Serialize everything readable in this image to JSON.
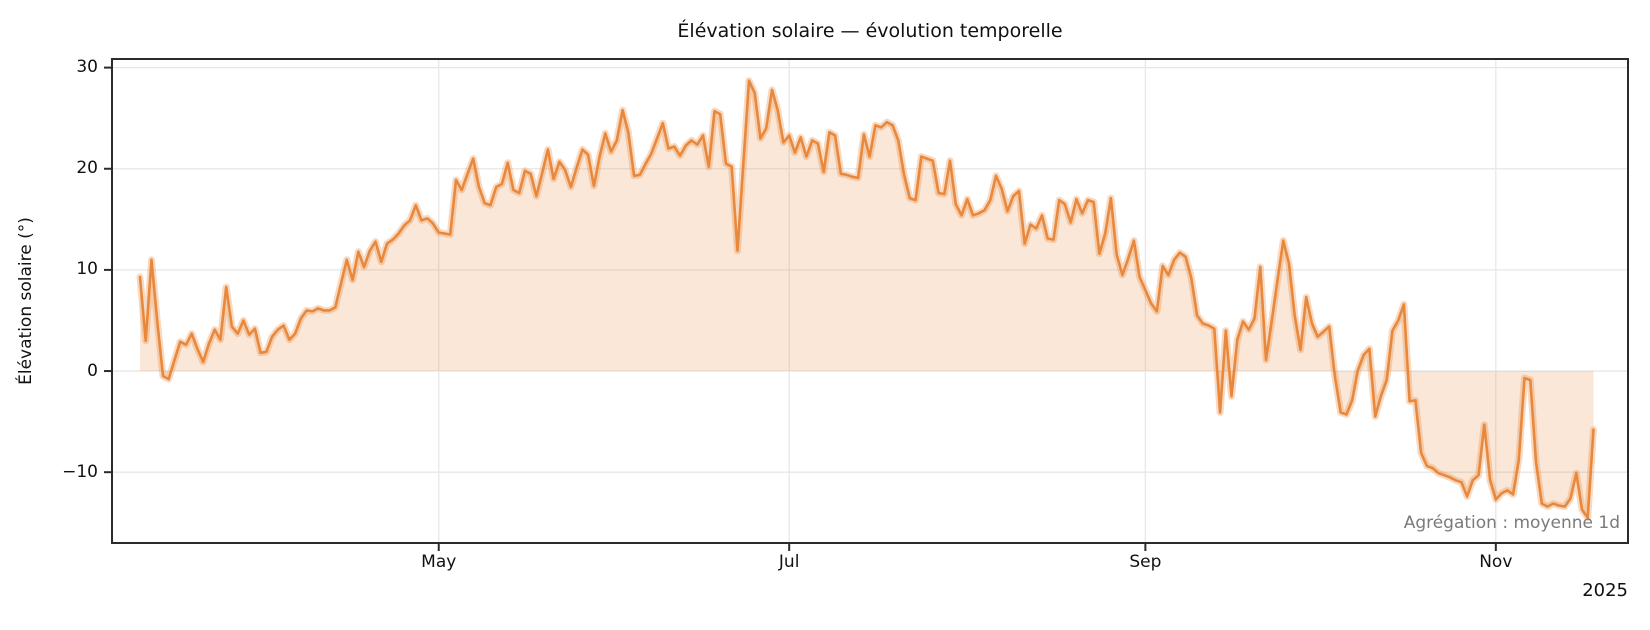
{
  "title": "Élévation solaire — évolution temporelle",
  "y_axis": {
    "label": "Élévation solaire (°)",
    "ticks": [
      30,
      20,
      10,
      0,
      -10
    ]
  },
  "x_axis": {
    "ticks": [
      {
        "label": "May",
        "day": 52
      },
      {
        "label": "Jul",
        "day": 113
      },
      {
        "label": "Sep",
        "day": 175
      },
      {
        "label": "Nov",
        "day": 236
      }
    ],
    "year_label": "2025"
  },
  "annotation": "Agrégation : moyenne 1d",
  "colors": {
    "line": "#e8883d",
    "halo": "rgba(232,136,61,0.32)",
    "fill": "rgba(232,136,61,0.20)",
    "grid": "#e7e7e7",
    "spine": "#2b2b2b",
    "text": "#111111",
    "annotation_text": "#7a7a7a"
  },
  "chart_data": {
    "type": "line",
    "title": "Élévation solaire — évolution temporelle",
    "ylabel": "Élévation solaire (°)",
    "xlabel": "",
    "year": "2025",
    "aggregation": "moyenne 1d",
    "grid": true,
    "legend": false,
    "ylim": [
      -17.0,
      30.85
    ],
    "x_unit": "day",
    "x_tick_labels": [
      "May",
      "Jul",
      "Sep",
      "Nov"
    ],
    "x_tick_day_offsets": [
      52,
      113,
      175,
      236
    ],
    "fill_to_zero": true,
    "series": [
      {
        "name": "Élévation solaire (°)",
        "frequency": "daily",
        "values": [
          9.3,
          3.0,
          11.0,
          5.0,
          -0.5,
          -0.8,
          1.1,
          2.9,
          2.6,
          3.7,
          2.2,
          0.9,
          2.7,
          4.1,
          3.1,
          8.3,
          4.4,
          3.7,
          5.0,
          3.6,
          4.2,
          1.8,
          1.9,
          3.4,
          4.1,
          4.5,
          3.1,
          3.7,
          5.2,
          6.0,
          5.9,
          6.2,
          6.0,
          6.0,
          6.3,
          8.7,
          11.0,
          9.0,
          11.8,
          10.3,
          11.9,
          12.8,
          10.8,
          12.6,
          13.0,
          13.6,
          14.4,
          14.9,
          16.4,
          14.9,
          15.1,
          14.6,
          13.7,
          13.6,
          13.5,
          18.9,
          17.9,
          19.5,
          21.0,
          18.2,
          16.6,
          16.4,
          18.2,
          18.5,
          20.6,
          17.9,
          17.6,
          19.8,
          19.5,
          17.3,
          19.6,
          21.9,
          19.0,
          20.7,
          19.9,
          18.2,
          20.1,
          21.9,
          21.4,
          18.3,
          21.2,
          23.5,
          21.7,
          22.8,
          25.8,
          23.6,
          19.3,
          19.4,
          20.5,
          21.5,
          23.0,
          24.5,
          22.0,
          22.2,
          21.3,
          22.3,
          22.8,
          22.4,
          23.3,
          20.2,
          25.7,
          25.4,
          20.5,
          20.2,
          11.9,
          20.3,
          28.7,
          27.5,
          23.0,
          24.0,
          27.8,
          25.8,
          22.6,
          23.3,
          21.6,
          23.1,
          21.2,
          22.8,
          22.5,
          19.7,
          23.6,
          23.3,
          19.5,
          19.4,
          19.2,
          19.1,
          23.4,
          21.2,
          24.3,
          24.1,
          24.6,
          24.3,
          22.8,
          19.4,
          17.1,
          16.9,
          21.2,
          21.0,
          20.8,
          17.6,
          17.5,
          20.8,
          16.5,
          15.4,
          17.0,
          15.4,
          15.6,
          15.9,
          16.9,
          19.3,
          18.0,
          15.8,
          17.3,
          17.8,
          12.6,
          14.5,
          14.1,
          15.4,
          13.1,
          13.0,
          16.9,
          16.5,
          14.7,
          17.0,
          15.6,
          16.9,
          16.7,
          11.6,
          13.6,
          17.1,
          11.5,
          9.5,
          11.1,
          12.9,
          9.3,
          8.0,
          6.7,
          5.9,
          10.4,
          9.5,
          11.0,
          11.7,
          11.3,
          9.2,
          5.5,
          4.7,
          4.5,
          4.2,
          -4.1,
          4.0,
          -2.5,
          3.1,
          4.9,
          4.1,
          5.2,
          10.3,
          1.1,
          5.0,
          9.0,
          12.9,
          10.6,
          5.5,
          2.1,
          7.3,
          4.7,
          3.4,
          3.9,
          4.4,
          -0.6,
          -4.1,
          -4.3,
          -2.9,
          0.1,
          1.6,
          2.2,
          -4.5,
          -2.5,
          -0.9,
          4.0,
          5.0,
          6.6,
          -3.0,
          -2.9,
          -8.1,
          -9.4,
          -9.6,
          -10.1,
          -10.3,
          -10.5,
          -10.8,
          -11.0,
          -12.4,
          -10.8,
          -10.3,
          -5.3,
          -10.8,
          -12.7,
          -12.1,
          -11.8,
          -12.2,
          -8.8,
          -0.7,
          -0.9,
          -9.0,
          -13.1,
          -13.4,
          -13.1,
          -13.3,
          -13.4,
          -12.6,
          -10.1,
          -13.7,
          -14.5,
          -5.8
        ]
      }
    ]
  }
}
